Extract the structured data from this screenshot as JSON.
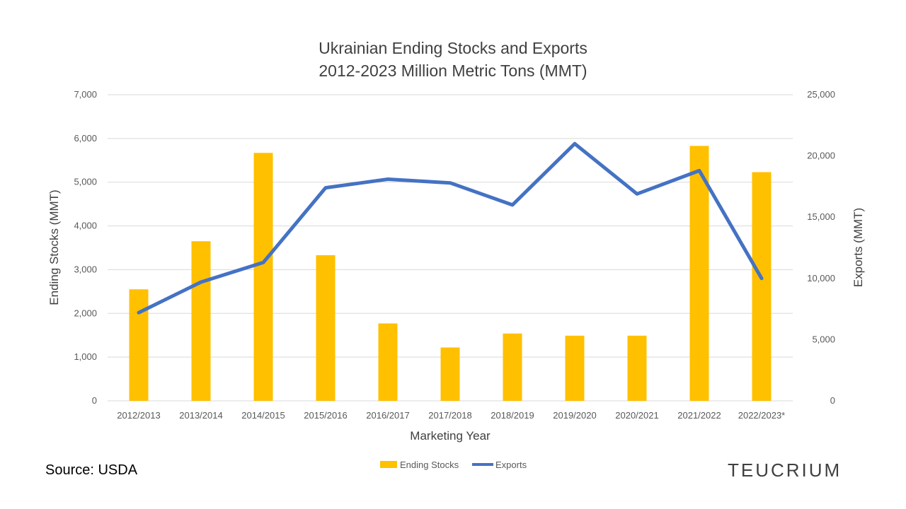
{
  "chart_data": {
    "type": "bar+line",
    "title": [
      "Ukrainian Ending Stocks and Exports",
      "2012-2023 Million Metric Tons (MMT)"
    ],
    "xlabel": "Marketing Year",
    "ylabel": "Ending Stocks (MMT)",
    "y2label": "Exports (MMT)",
    "categories": [
      "2012/2013",
      "2013/2014",
      "2014/2015",
      "2015/2016",
      "2016/2017",
      "2017/2018",
      "2018/2019",
      "2019/2020",
      "2020/2021",
      "2021/2022",
      "2022/2023*"
    ],
    "ylim": [
      0,
      7000
    ],
    "yticks": [
      0,
      1000,
      2000,
      3000,
      4000,
      5000,
      6000,
      7000
    ],
    "y2lim": [
      0,
      25000
    ],
    "y2ticks": [
      0,
      5000,
      10000,
      15000,
      20000,
      25000
    ],
    "series": [
      {
        "name": "Ending Stocks",
        "type": "bar",
        "axis": "left",
        "color": "#FFC000",
        "values": [
          2550,
          3650,
          5670,
          3330,
          1770,
          1220,
          1540,
          1490,
          1490,
          5830,
          5230
        ]
      },
      {
        "name": "Exports",
        "type": "line",
        "axis": "right",
        "color": "#4472C4",
        "values": [
          7200,
          9700,
          11300,
          17400,
          18100,
          17800,
          16000,
          21000,
          16900,
          18800,
          10000
        ]
      }
    ],
    "grid": true,
    "legend": "bottom-center"
  },
  "footer": {
    "source": "Source: USDA",
    "brand": "TEUCRIUM"
  }
}
